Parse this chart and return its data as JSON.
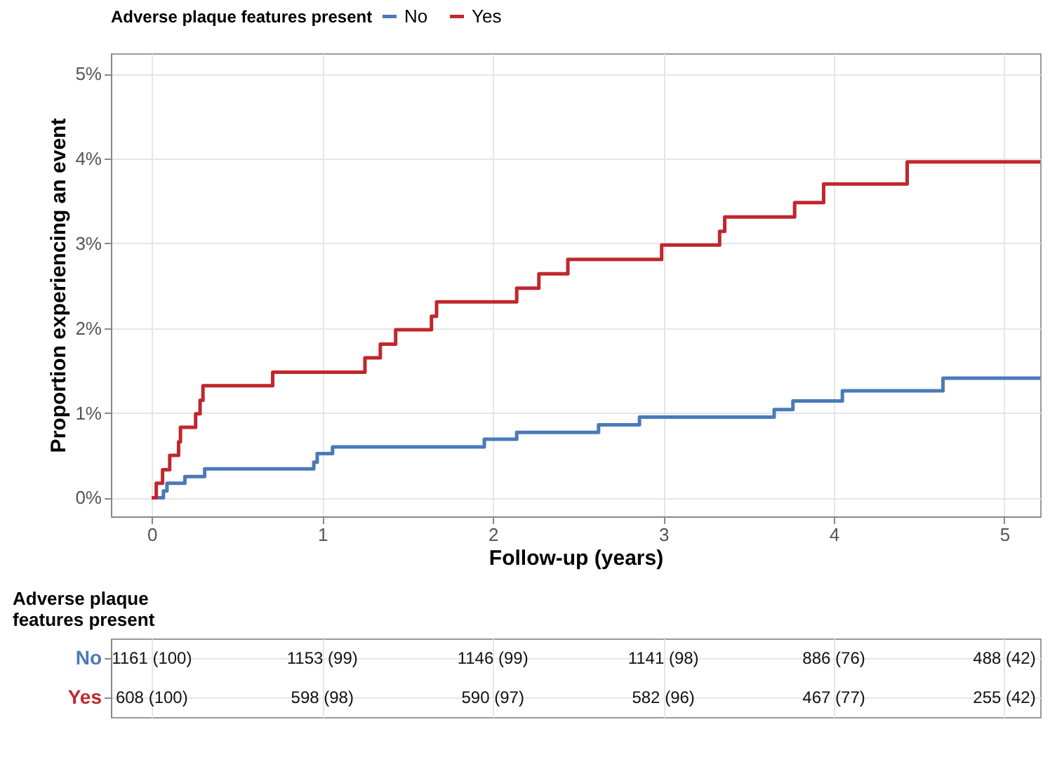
{
  "chart_data": [
    {
      "type": "step",
      "xlabel": "Follow-up (years)",
      "ylabel": "Proportion experiencing an event",
      "legend_title": "Adverse plaque features present",
      "legend": "top",
      "xlim": [
        -0.24,
        5.21
      ],
      "xticks": [
        0,
        1,
        2,
        3,
        4,
        5
      ],
      "ylim": [
        -0.22,
        5.24
      ],
      "yticks": [
        {
          "value": 0,
          "label": "0%"
        },
        {
          "value": 1,
          "label": "1%"
        },
        {
          "value": 2,
          "label": "2%"
        },
        {
          "value": 3,
          "label": "3%"
        },
        {
          "value": 4,
          "label": "4%"
        },
        {
          "value": 5,
          "label": "5%"
        }
      ],
      "grid": true,
      "line_style": "solid",
      "marker": "none",
      "series": [
        {
          "name": "No",
          "color": "#4a7ab8",
          "x": [
            0,
            0.068,
            0.089,
            0.194,
            0.31,
            0.95,
            0.97,
            1.06,
            1.95,
            2.14,
            2.62,
            2.86,
            3.65,
            3.76,
            4.05,
            4.64,
            5.21
          ],
          "values": [
            0,
            0.08,
            0.17,
            0.25,
            0.34,
            0.42,
            0.52,
            0.6,
            0.69,
            0.77,
            0.86,
            0.95,
            1.04,
            1.14,
            1.26,
            1.41,
            1.41
          ]
        },
        {
          "name": "Yes",
          "color": "#c0272d",
          "x": [
            0,
            0.026,
            0.063,
            0.105,
            0.157,
            0.168,
            0.257,
            0.283,
            0.3,
            0.709,
            1.25,
            1.34,
            1.43,
            1.64,
            1.67,
            2.14,
            2.27,
            2.44,
            2.99,
            3.33,
            3.36,
            3.77,
            3.94,
            4.43,
            5.21
          ],
          "values": [
            0,
            0.17,
            0.33,
            0.5,
            0.66,
            0.83,
            0.99,
            1.15,
            1.32,
            1.48,
            1.65,
            1.81,
            1.98,
            2.14,
            2.31,
            2.47,
            2.64,
            2.81,
            2.98,
            3.14,
            3.31,
            3.48,
            3.7,
            3.96,
            3.96
          ]
        }
      ]
    },
    {
      "type": "other",
      "title": "Adverse plaque features present",
      "annotations": [
        "No",
        "1161 (100)",
        "1153 (99)",
        "1146 (99)",
        "1141 (98)",
        "886 (76)",
        "488 (42)",
        "Yes",
        "608 (100)",
        "598 (98)",
        "590 (97)",
        "582 (96)",
        "467 (77)",
        "255 (42)"
      ]
    }
  ]
}
